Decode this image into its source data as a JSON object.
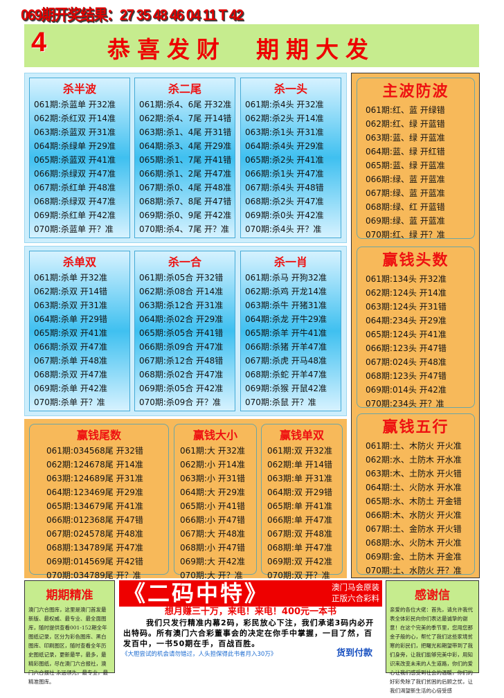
{
  "result_line": "069期开奖结果：27 35 48 46 04 11 T 42",
  "banner": {
    "number": "4",
    "slogan": "恭喜发财  期期大发"
  },
  "blue_panels": [
    {
      "title": "杀半波",
      "rows": [
        "061期:杀蓝单 开32准",
        "062期:杀红双 开14准",
        "063期:杀蓝双 开31准",
        "064期:杀绿单 开29准",
        "065期:杀蓝双 开41准",
        "066期:杀绿双 开47准",
        "067期:杀红单 开48准",
        "068期:杀绿双 开47准",
        "069期:杀红单 开42准",
        "070期:杀蓝单 开？准"
      ]
    },
    {
      "title": "杀二尾",
      "rows": [
        "061期:杀4、6尾 开32准",
        "062期:杀4、7尾 开14错",
        "063期:杀1、4尾 开31错",
        "064期:杀3、4尾 开29准",
        "065期:杀1、7尾 开41错",
        "066期:杀1、2尾 开47准",
        "067期:杀0、4尾 开48准",
        "068期:杀7、8尾 开47错",
        "069期:杀0、9尾 开42准",
        "070期:杀4、7尾 开？准"
      ]
    },
    {
      "title": "杀一头",
      "rows": [
        "061期:杀4头 开32准",
        "062期:杀2头 开14准",
        "063期:杀1头 开31准",
        "064期:杀4头 开29准",
        "065期:杀2头 开41准",
        "066期:杀1头 开47准",
        "067期:杀4头 开48错",
        "068期:杀2头 开47准",
        "069期:杀0头 开42准",
        "070期:杀4头 开？准"
      ]
    },
    {
      "title": "杀单双",
      "rows": [
        "061期:杀单 开32准",
        "062期:杀双 开14错",
        "063期:杀双 开31准",
        "064期:杀单 开29错",
        "065期:杀双 开41准",
        "066期:杀双 开47准",
        "067期:杀单 开48准",
        "068期:杀双 开47准",
        "069期:杀单 开42准",
        "070期:杀单 开？准"
      ]
    },
    {
      "title": "杀一合",
      "rows": [
        "061期:杀05合 开32错",
        "062期:杀08合 开14准",
        "063期:杀12合 开31准",
        "064期:杀02合 开29准",
        "065期:杀05合 开41错",
        "066期:杀09合 开47准",
        "067期:杀12合 开48错",
        "068期:杀02合 开47准",
        "069期:杀05合 开42准",
        "070期:杀09合 开？准"
      ]
    },
    {
      "title": "杀一肖",
      "rows": [
        "061期:杀马 开狗32准",
        "062期:杀鸡 开龙14准",
        "063期:杀牛 开猪31准",
        "064期:杀龙 开牛29准",
        "065期:杀羊 开牛41准",
        "066期:杀猪 开羊47准",
        "067期:杀虎 开马48准",
        "068期:杀蛇 开羊47准",
        "069期:杀猴 开鼠42准",
        "070期:杀鼠 开？准"
      ]
    }
  ],
  "orange_panels": [
    {
      "title": "赢钱尾数",
      "rows": [
        "061期:034568尾 开32错",
        "062期:124678尾 开14准",
        "063期:124689尾 开31准",
        "064期:123469尾 开29准",
        "065期:134679尾 开41准",
        "066期:012368尾 开47错",
        "067期:024578尾 开48准",
        "068期:134789尾 开47准",
        "069期:014569尾 开42错",
        "070期:034789尾 开？准"
      ]
    },
    {
      "title": "赢钱大小",
      "rows": [
        "061期:大 开32准",
        "062期:小 开14准",
        "063期:小 开31错",
        "064期:大 开29准",
        "065期:小 开41错",
        "066期:小 开47错",
        "067期:大 开48准",
        "068期:小 开47错",
        "069期:大 开42准",
        "070期:大 开？准"
      ]
    },
    {
      "title": "赢钱单双",
      "rows": [
        "061期:双 开32准",
        "062期:单 开14错",
        "063期:单 开31准",
        "064期:双 开29错",
        "065期:单 开41准",
        "066期:单 开47准",
        "067期:双 开48准",
        "068期:单 开47准",
        "069期:双 开42准",
        "070期:双 开？准"
      ]
    }
  ],
  "right_panels": [
    {
      "title": "主波防波",
      "rows": [
        "061期:红、蓝 开绿错",
        "062期:红、绿 开蓝错",
        "063期:蓝、绿 开蓝准",
        "064期:蓝、绿 开红错",
        "065期:蓝、绿 开蓝准",
        "066期:绿、蓝 开蓝准",
        "067期:绿、蓝 开蓝准",
        "068期:绿、红 开蓝错",
        "069期:绿、蓝 开蓝准",
        "070期:红、绿 开？准"
      ]
    },
    {
      "title": "赢钱头数",
      "rows": [
        "061期:134头 开32准",
        "062期:124头 开14准",
        "063期:124头 开31错",
        "064期:234头 开29准",
        "065期:124头 开41准",
        "066期:123头 开47错",
        "067期:024头 开48准",
        "068期:123头 开47错",
        "069期:014头 开42准",
        "070期:234头 开？准"
      ]
    },
    {
      "title": "赢钱五行",
      "rows": [
        "061期:土、木防火 开火准",
        "062期:水、土防木 开水准",
        "063期:木、土防水 开火错",
        "064期:土、火防水 开水准",
        "065期:水、木防土 开金错",
        "066期:木、水防火 开火准",
        "067期:土、金防水 开火错",
        "068期:水、火防木 开火准",
        "069期:金、土防木 开金准",
        "070期:土、水防火 开？准"
      ]
    }
  ],
  "left_box": {
    "title": "期期精准",
    "text": "澳门六合图库，这里是澳门首发最新版、最权威、最专业、最全面图库，随时提供查看001-152期全年图纸记录，区分为彩色图库、黑白图库、印刷图区，随时查看全年历史图纸记录，更新最早，最多，最精彩图纸，尽在澳门六合报社，澳门六合报社-永远领先，最专业，最精准图库。"
  },
  "ad": {
    "title": "《二码中特》",
    "sub1": "澳门马会原装",
    "sub2": "正版六合彩料",
    "line2": "想月赚三十万，来电！来电！400元一本书",
    "body": "我们只发行精准内幕2码，彩民放心下注，我们承诺3码内必开出特码。所有澳门六合彩董事会的决定在你手中掌握，一目了然，百发百中，一书50期在手，百战百胜。",
    "foot": "《大胆尝试的机会请勿错过，人头担保得此书者月入30万》",
    "pay": "货到付款"
  },
  "right_box": {
    "title": "感谢信",
    "text": "亲爱的各位大佬：首先，请允许我代表全体彩民向你们表达最诚挚的谢意！在这个完美的季节里，您用您那金子般的心，帮忙了我们这些家境贫寒的彩民们，把曙光和期望带到了我们身旁，让我们能够完美中彩，用知识来改变未来的人生道路，你们的爱心让我们感受到社会的温暖，你们的好彩免除了我们贫困的后顾之忧，让我们渴望新生活的心倍受感"
  },
  "colors": {
    "red": "#ee0000",
    "banner_green": "#c6ec8e",
    "orange": "#f7b95a",
    "blue": "#3fc0f0"
  }
}
